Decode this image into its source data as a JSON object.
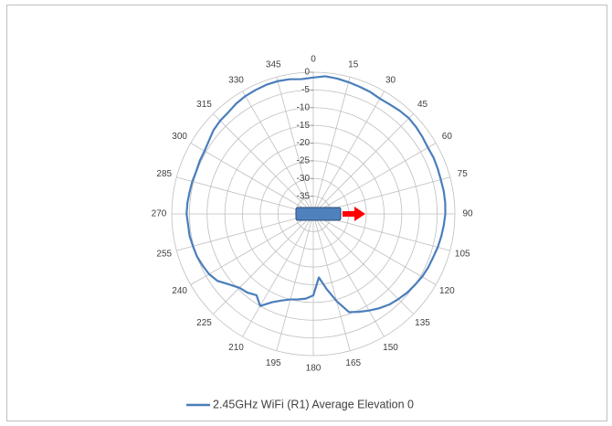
{
  "chart_data": {
    "type": "radar",
    "title": "",
    "angle_labels": [
      "0",
      "15",
      "30",
      "45",
      "60",
      "75",
      "90",
      "105",
      "120",
      "135",
      "150",
      "165",
      "180",
      "195",
      "210",
      "225",
      "240",
      "255",
      "270",
      "285",
      "300",
      "315",
      "330",
      "345"
    ],
    "radial_labels": [
      "-35",
      "-30",
      "-25",
      "-20",
      "-15",
      "-10",
      "-5",
      "0"
    ],
    "radial_range": [
      -40,
      0
    ],
    "grid": true,
    "legend_position": "bottom",
    "series": [
      {
        "name": "2.45GHz WiFi (R1) Average Elevation 0",
        "color": "#4a7ebb",
        "points": [
          {
            "angle": 0,
            "value": -1.5
          },
          {
            "angle": 5,
            "value": -1.0
          },
          {
            "angle": 10,
            "value": -1.2
          },
          {
            "angle": 15,
            "value": -1.5
          },
          {
            "angle": 20,
            "value": -1.8
          },
          {
            "angle": 25,
            "value": -2.0
          },
          {
            "angle": 30,
            "value": -2.4
          },
          {
            "angle": 35,
            "value": -2.3
          },
          {
            "angle": 40,
            "value": -2.0
          },
          {
            "angle": 45,
            "value": -1.8
          },
          {
            "angle": 50,
            "value": -2.0
          },
          {
            "angle": 55,
            "value": -2.3
          },
          {
            "angle": 60,
            "value": -2.6
          },
          {
            "angle": 65,
            "value": -2.5
          },
          {
            "angle": 70,
            "value": -2.6
          },
          {
            "angle": 75,
            "value": -2.7
          },
          {
            "angle": 80,
            "value": -2.6
          },
          {
            "angle": 85,
            "value": -2.6
          },
          {
            "angle": 90,
            "value": -2.7
          },
          {
            "angle": 95,
            "value": -3.0
          },
          {
            "angle": 100,
            "value": -3.3
          },
          {
            "angle": 105,
            "value": -3.6
          },
          {
            "angle": 110,
            "value": -4.0
          },
          {
            "angle": 115,
            "value": -4.2
          },
          {
            "angle": 120,
            "value": -4.5
          },
          {
            "angle": 125,
            "value": -5.0
          },
          {
            "angle": 130,
            "value": -5.4
          },
          {
            "angle": 135,
            "value": -6.0
          },
          {
            "angle": 140,
            "value": -6.6
          },
          {
            "angle": 145,
            "value": -7.5
          },
          {
            "angle": 150,
            "value": -8.5
          },
          {
            "angle": 155,
            "value": -9.5
          },
          {
            "angle": 160,
            "value": -10.5
          },
          {
            "angle": 165,
            "value": -14.5
          },
          {
            "angle": 170,
            "value": -18.5
          },
          {
            "angle": 175,
            "value": -22.0
          },
          {
            "angle": 180,
            "value": -17.0
          },
          {
            "angle": 185,
            "value": -16.0
          },
          {
            "angle": 190,
            "value": -15.5
          },
          {
            "angle": 195,
            "value": -15.0
          },
          {
            "angle": 200,
            "value": -14.0
          },
          {
            "angle": 205,
            "value": -12.5
          },
          {
            "angle": 210,
            "value": -10.0
          },
          {
            "angle": 215,
            "value": -12.0
          },
          {
            "angle": 220,
            "value": -11.0
          },
          {
            "angle": 225,
            "value": -10.5
          },
          {
            "angle": 230,
            "value": -9.0
          },
          {
            "angle": 235,
            "value": -7.0
          },
          {
            "angle": 240,
            "value": -6.0
          },
          {
            "angle": 245,
            "value": -5.5
          },
          {
            "angle": 250,
            "value": -5.0
          },
          {
            "angle": 255,
            "value": -4.8
          },
          {
            "angle": 260,
            "value": -4.5
          },
          {
            "angle": 265,
            "value": -4.5
          },
          {
            "angle": 270,
            "value": -4.2
          },
          {
            "angle": 275,
            "value": -4.3
          },
          {
            "angle": 280,
            "value": -4.5
          },
          {
            "angle": 285,
            "value": -4.6
          },
          {
            "angle": 290,
            "value": -4.8
          },
          {
            "angle": 295,
            "value": -4.6
          },
          {
            "angle": 300,
            "value": -4.5
          },
          {
            "angle": 305,
            "value": -4.0
          },
          {
            "angle": 310,
            "value": -3.2
          },
          {
            "angle": 315,
            "value": -2.8
          },
          {
            "angle": 320,
            "value": -2.6
          },
          {
            "angle": 325,
            "value": -2.0
          },
          {
            "angle": 330,
            "value": -1.6
          },
          {
            "angle": 335,
            "value": -1.4
          },
          {
            "angle": 340,
            "value": -1.2
          },
          {
            "angle": 345,
            "value": -1.2
          },
          {
            "angle": 350,
            "value": -1.4
          },
          {
            "angle": 355,
            "value": -1.8
          }
        ]
      }
    ],
    "device_marker": {
      "body_color": "#4f81bd",
      "body_border": "#2e4a7a",
      "arrow_color": "#ff0000",
      "arrow_direction": "90"
    }
  }
}
